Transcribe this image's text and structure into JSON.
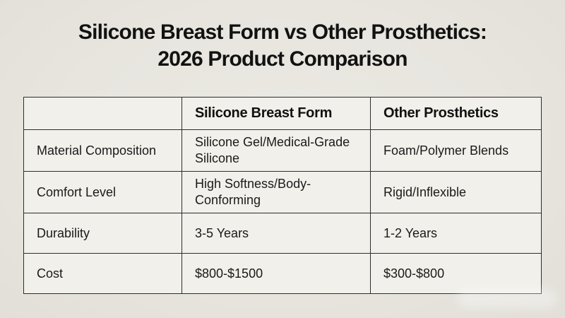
{
  "theme": {
    "page_background": "#e8e5df",
    "cell_background": "#f1f0ea",
    "border_color": "#2d2d2d",
    "title_color": "#121212",
    "text_color": "#1a1a1a"
  },
  "header": {
    "title_line1": "Silicone Breast Form vs Other Prosthetics:",
    "title_line2": "2026 Product Comparison"
  },
  "table": {
    "columns": [
      {
        "label": ""
      },
      {
        "label": "Silicone Breast Form"
      },
      {
        "label": "Other Prosthetics"
      }
    ],
    "rows": [
      {
        "feature": "Material Composition",
        "silicone_breast_form": "Silicone Gel/Medical-Grade Silicone",
        "other_prosthetics": "Foam/Polymer Blends"
      },
      {
        "feature": "Comfort Level",
        "silicone_breast_form": "High Softness/Body-Conforming",
        "other_prosthetics": "Rigid/Inflexible"
      },
      {
        "feature": "Durability",
        "silicone_breast_form": "3-5 Years",
        "other_prosthetics": "1-2 Years"
      },
      {
        "feature": "Cost",
        "silicone_breast_form": "$800-$1500",
        "other_prosthetics": "$300-$800"
      }
    ]
  }
}
